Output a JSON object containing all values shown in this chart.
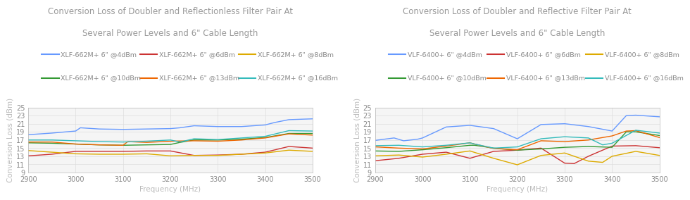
{
  "chart1": {
    "title1": "Conversion Loss of Doubler and Reflectionless Filter Pair At",
    "title2": "Several Power Levels and 6\" Cable Length",
    "xlabel": "Frequency (MHz)",
    "ylabel": "Conversion Loss (dBm)",
    "ylim": [
      9,
      25
    ],
    "xlim": [
      2900,
      3500
    ],
    "yticks": [
      9,
      11,
      13,
      15,
      17,
      19,
      21,
      23,
      25
    ],
    "xticks": [
      2900,
      3000,
      3100,
      3200,
      3300,
      3400,
      3500
    ],
    "series": [
      {
        "label": "XLF-662M+ 6\" @4dBm",
        "color": "#6699ff",
        "x": [
          2900,
          2950,
          3000,
          3010,
          3050,
          3100,
          3150,
          3200,
          3220,
          3250,
          3300,
          3350,
          3400,
          3420,
          3450,
          3500
        ],
        "y": [
          18.3,
          18.7,
          19.2,
          20.0,
          19.7,
          19.6,
          19.7,
          19.8,
          20.0,
          20.5,
          20.3,
          20.3,
          20.7,
          21.3,
          22.0,
          22.2
        ]
      },
      {
        "label": "XLF-662M+ 6\" @6dBm",
        "color": "#cc3333",
        "x": [
          2900,
          2950,
          3000,
          3050,
          3100,
          3150,
          3200,
          3250,
          3300,
          3350,
          3400,
          3450,
          3500
        ],
        "y": [
          13.1,
          13.5,
          14.2,
          14.2,
          14.2,
          14.3,
          14.3,
          13.2,
          13.3,
          13.5,
          14.0,
          15.4,
          15.0
        ]
      },
      {
        "label": "XLF-662M+ 6\" @8dBm",
        "color": "#ddaa00",
        "x": [
          2900,
          2950,
          3000,
          3050,
          3100,
          3150,
          3200,
          3250,
          3300,
          3350,
          3400,
          3450,
          3500
        ],
        "y": [
          14.4,
          14.0,
          13.6,
          13.5,
          13.5,
          13.6,
          13.1,
          13.2,
          13.2,
          13.5,
          13.8,
          14.5,
          14.2
        ]
      },
      {
        "label": "XLF-662M+ 6\" @10dBm",
        "color": "#339933",
        "x": [
          2900,
          2950,
          3000,
          3050,
          3100,
          3150,
          3200,
          3220,
          3250,
          3300,
          3350,
          3400,
          3450,
          3500
        ],
        "y": [
          16.3,
          16.2,
          16.0,
          15.8,
          15.7,
          15.8,
          15.9,
          16.4,
          17.0,
          17.0,
          17.2,
          17.6,
          18.6,
          18.6
        ]
      },
      {
        "label": "XLF-662M+ 6\" @13dBm",
        "color": "#ee6600",
        "x": [
          2900,
          2950,
          3000,
          3050,
          3100,
          3110,
          3150,
          3200,
          3250,
          3300,
          3350,
          3400,
          3450,
          3500
        ],
        "y": [
          16.5,
          16.5,
          16.0,
          15.8,
          15.7,
          16.6,
          16.4,
          16.7,
          16.8,
          16.7,
          17.0,
          17.5,
          18.5,
          18.2
        ]
      },
      {
        "label": "XLF-662M+ 6\" @16dBm",
        "color": "#33bbbb",
        "x": [
          2900,
          2950,
          3000,
          3050,
          3100,
          3150,
          3200,
          3220,
          3250,
          3300,
          3350,
          3400,
          3450,
          3500
        ],
        "y": [
          17.0,
          17.0,
          16.8,
          16.6,
          16.5,
          16.7,
          17.0,
          16.5,
          17.3,
          17.1,
          17.5,
          17.9,
          19.3,
          19.2
        ]
      }
    ]
  },
  "chart2": {
    "title1": "Conversion Loss of Doubler and Reflective Filter Pair At",
    "title2": "Several Power Levels and 6\" Cable Length",
    "xlabel": "Frequency (MHz)",
    "ylabel": "Conversion Loss (dBm)",
    "ylim": [
      9,
      25
    ],
    "xlim": [
      2900,
      3500
    ],
    "yticks": [
      9,
      11,
      13,
      15,
      17,
      19,
      21,
      23,
      25
    ],
    "xticks": [
      2900,
      3000,
      3100,
      3200,
      3300,
      3400,
      3500
    ],
    "series": [
      {
        "label": "VLF-6400+ 6\" @4dBm",
        "color": "#6699ff",
        "x": [
          2900,
          2940,
          2960,
          2990,
          3000,
          3050,
          3100,
          3150,
          3200,
          3250,
          3300,
          3350,
          3400,
          3430,
          3450,
          3500
        ],
        "y": [
          16.9,
          17.5,
          16.8,
          17.2,
          17.5,
          20.2,
          20.6,
          19.8,
          17.3,
          20.8,
          21.0,
          20.3,
          19.2,
          23.0,
          23.1,
          22.7
        ]
      },
      {
        "label": "VLF-6400+ 6\" @6dBm",
        "color": "#cc3333",
        "x": [
          2900,
          2950,
          3000,
          3050,
          3100,
          3150,
          3200,
          3250,
          3300,
          3320,
          3350,
          3400,
          3450,
          3500
        ],
        "y": [
          11.9,
          12.5,
          13.5,
          14.0,
          12.5,
          14.2,
          14.5,
          15.0,
          11.3,
          11.2,
          13.0,
          15.5,
          15.6,
          15.1
        ]
      },
      {
        "label": "VLF-6400+ 6\" @8dBm",
        "color": "#ddaa00",
        "x": [
          2900,
          2950,
          3000,
          3050,
          3100,
          3150,
          3200,
          3250,
          3300,
          3350,
          3380,
          3400,
          3450,
          3500
        ],
        "y": [
          13.1,
          13.3,
          12.8,
          13.5,
          14.3,
          12.5,
          10.9,
          13.2,
          13.8,
          11.8,
          11.5,
          13.0,
          14.2,
          13.2
        ]
      },
      {
        "label": "VLF-6400+ 6\" @10dBm",
        "color": "#339933",
        "x": [
          2900,
          2950,
          3000,
          3050,
          3100,
          3110,
          3150,
          3200,
          3250,
          3300,
          3350,
          3400,
          3430,
          3450,
          3500
        ],
        "y": [
          14.3,
          14.2,
          14.6,
          15.1,
          15.7,
          15.7,
          15.0,
          14.5,
          14.8,
          15.2,
          15.4,
          15.2,
          19.0,
          19.0,
          18.1
        ]
      },
      {
        "label": "VLF-6400+ 6\" @13dBm",
        "color": "#ee6600",
        "x": [
          2900,
          2950,
          3000,
          3050,
          3100,
          3110,
          3150,
          3200,
          3250,
          3300,
          3350,
          3400,
          3430,
          3450,
          3500
        ],
        "y": [
          15.3,
          15.0,
          14.8,
          15.5,
          16.3,
          16.0,
          14.9,
          14.6,
          16.8,
          16.6,
          17.0,
          18.0,
          19.2,
          19.3,
          17.6
        ]
      },
      {
        "label": "VLF-6400+ 6\" @16dBm",
        "color": "#33bbbb",
        "x": [
          2900,
          2950,
          3000,
          3050,
          3100,
          3110,
          3150,
          3200,
          3250,
          3300,
          3350,
          3380,
          3400,
          3450,
          3500
        ],
        "y": [
          15.6,
          15.7,
          15.3,
          15.7,
          16.3,
          16.0,
          15.0,
          15.3,
          17.3,
          17.8,
          17.5,
          15.8,
          16.2,
          19.4,
          18.7
        ]
      }
    ]
  },
  "title_color": "#999999",
  "legend_color": "#888888",
  "axis_color": "#bbbbbb",
  "grid_color": "#dddddd",
  "tick_color": "#888888",
  "bg_color": "#ffffff",
  "plot_bg_color": "#f5f5f5",
  "title_fontsize": 8.5,
  "legend_fontsize": 6.8,
  "axis_label_fontsize": 7.5,
  "tick_fontsize": 7.0
}
